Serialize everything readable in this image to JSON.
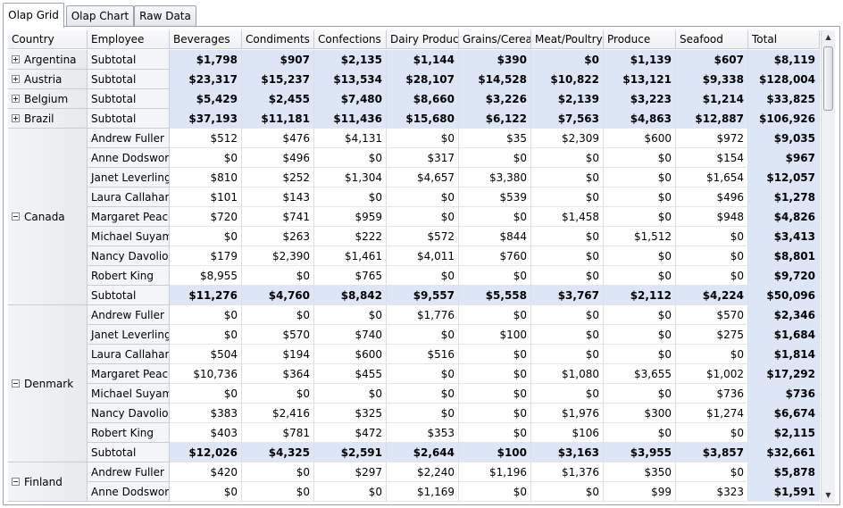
{
  "tabs": [
    {
      "label": "Olap Grid",
      "active": true
    },
    {
      "label": "Olap Chart",
      "active": false
    },
    {
      "label": "Raw Data",
      "active": false
    }
  ],
  "grid": {
    "row_headers": [
      "Country",
      "Employee"
    ],
    "column_headers": [
      "Beverages",
      "Condiments",
      "Confections",
      "Dairy Products",
      "Grains/Cereals",
      "Meat/Poultry",
      "Produce",
      "Seafood",
      "Total"
    ],
    "countries": [
      {
        "name": "Argentina",
        "expanded": false,
        "rows": [
          {
            "employee": "Subtotal",
            "subtotal": true,
            "values": [
              "$1,798",
              "$907",
              "$2,135",
              "$1,144",
              "$390",
              "$0",
              "$1,139",
              "$607",
              "$8,119"
            ]
          }
        ]
      },
      {
        "name": "Austria",
        "expanded": false,
        "rows": [
          {
            "employee": "Subtotal",
            "subtotal": true,
            "values": [
              "$23,317",
              "$15,237",
              "$13,534",
              "$28,107",
              "$14,528",
              "$10,822",
              "$13,121",
              "$9,338",
              "$128,004"
            ]
          }
        ]
      },
      {
        "name": "Belgium",
        "expanded": false,
        "rows": [
          {
            "employee": "Subtotal",
            "subtotal": true,
            "values": [
              "$5,429",
              "$2,455",
              "$7,480",
              "$8,660",
              "$3,226",
              "$2,139",
              "$3,223",
              "$1,214",
              "$33,825"
            ]
          }
        ]
      },
      {
        "name": "Brazil",
        "expanded": false,
        "rows": [
          {
            "employee": "Subtotal",
            "subtotal": true,
            "values": [
              "$37,193",
              "$11,181",
              "$11,436",
              "$15,680",
              "$6,122",
              "$7,563",
              "$4,863",
              "$12,887",
              "$106,926"
            ]
          }
        ]
      },
      {
        "name": "Canada",
        "expanded": true,
        "rows": [
          {
            "employee": "Andrew Fuller",
            "subtotal": false,
            "values": [
              "$512",
              "$476",
              "$4,131",
              "$0",
              "$35",
              "$2,309",
              "$600",
              "$972",
              "$9,035"
            ]
          },
          {
            "employee": "Anne Dodsworth",
            "subtotal": false,
            "values": [
              "$0",
              "$496",
              "$0",
              "$317",
              "$0",
              "$0",
              "$0",
              "$154",
              "$967"
            ]
          },
          {
            "employee": "Janet Leverling",
            "subtotal": false,
            "values": [
              "$810",
              "$252",
              "$1,304",
              "$4,657",
              "$3,380",
              "$0",
              "$0",
              "$1,654",
              "$12,057"
            ]
          },
          {
            "employee": "Laura Callahan",
            "subtotal": false,
            "values": [
              "$101",
              "$143",
              "$0",
              "$0",
              "$539",
              "$0",
              "$0",
              "$496",
              "$1,278"
            ]
          },
          {
            "employee": "Margaret Peacock",
            "subtotal": false,
            "values": [
              "$720",
              "$741",
              "$959",
              "$0",
              "$0",
              "$1,458",
              "$0",
              "$948",
              "$4,826"
            ]
          },
          {
            "employee": "Michael Suyama",
            "subtotal": false,
            "values": [
              "$0",
              "$263",
              "$222",
              "$572",
              "$844",
              "$0",
              "$1,512",
              "$0",
              "$3,413"
            ]
          },
          {
            "employee": "Nancy Davolio",
            "subtotal": false,
            "values": [
              "$179",
              "$2,390",
              "$1,461",
              "$4,011",
              "$760",
              "$0",
              "$0",
              "$0",
              "$8,801"
            ]
          },
          {
            "employee": "Robert King",
            "subtotal": false,
            "values": [
              "$8,955",
              "$0",
              "$765",
              "$0",
              "$0",
              "$0",
              "$0",
              "$0",
              "$9,720"
            ]
          },
          {
            "employee": "Subtotal",
            "subtotal": true,
            "values": [
              "$11,276",
              "$4,760",
              "$8,842",
              "$9,557",
              "$5,558",
              "$3,767",
              "$2,112",
              "$4,224",
              "$50,096"
            ]
          }
        ]
      },
      {
        "name": "Denmark",
        "expanded": true,
        "rows": [
          {
            "employee": "Andrew Fuller",
            "subtotal": false,
            "values": [
              "$0",
              "$0",
              "$0",
              "$1,776",
              "$0",
              "$0",
              "$0",
              "$570",
              "$2,346"
            ]
          },
          {
            "employee": "Janet Leverling",
            "subtotal": false,
            "values": [
              "$0",
              "$570",
              "$740",
              "$0",
              "$100",
              "$0",
              "$0",
              "$275",
              "$1,684"
            ]
          },
          {
            "employee": "Laura Callahan",
            "subtotal": false,
            "values": [
              "$504",
              "$194",
              "$600",
              "$516",
              "$0",
              "$0",
              "$0",
              "$0",
              "$1,814"
            ]
          },
          {
            "employee": "Margaret Peacock",
            "subtotal": false,
            "values": [
              "$10,736",
              "$364",
              "$455",
              "$0",
              "$0",
              "$1,080",
              "$3,655",
              "$1,002",
              "$17,292"
            ]
          },
          {
            "employee": "Michael Suyama",
            "subtotal": false,
            "values": [
              "$0",
              "$0",
              "$0",
              "$0",
              "$0",
              "$0",
              "$0",
              "$736",
              "$736"
            ]
          },
          {
            "employee": "Nancy Davolio",
            "subtotal": false,
            "values": [
              "$383",
              "$2,416",
              "$325",
              "$0",
              "$0",
              "$1,976",
              "$300",
              "$1,274",
              "$6,674"
            ]
          },
          {
            "employee": "Robert King",
            "subtotal": false,
            "values": [
              "$403",
              "$781",
              "$472",
              "$353",
              "$0",
              "$106",
              "$0",
              "$0",
              "$2,115"
            ]
          },
          {
            "employee": "Subtotal",
            "subtotal": true,
            "values": [
              "$12,026",
              "$4,325",
              "$2,591",
              "$2,644",
              "$100",
              "$3,163",
              "$3,955",
              "$3,857",
              "$32,661"
            ]
          }
        ]
      },
      {
        "name": "Finland",
        "expanded": true,
        "rows": [
          {
            "employee": "Andrew Fuller",
            "subtotal": false,
            "values": [
              "$420",
              "$0",
              "$297",
              "$2,240",
              "$1,196",
              "$1,376",
              "$350",
              "$0",
              "$5,878"
            ]
          },
          {
            "employee": "Anne Dodsworth",
            "subtotal": false,
            "values": [
              "$0",
              "$0",
              "$0",
              "$1,169",
              "$0",
              "$0",
              "$99",
              "$323",
              "$1,591"
            ]
          }
        ]
      }
    ]
  },
  "scrollbar": {
    "up_icon": "scroll-up-arrow-icon",
    "down_icon": "scroll-down-arrow-icon"
  }
}
